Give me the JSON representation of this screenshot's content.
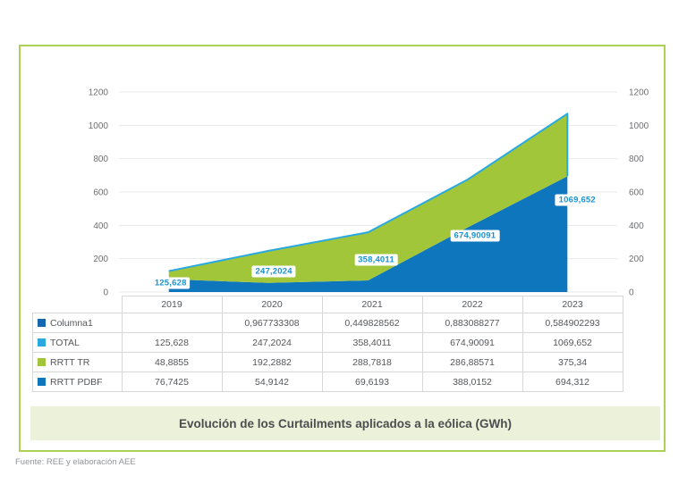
{
  "title": "Evolución de los Curtailments aplicados a la eólica (GWh)",
  "source": "Fuente: REE y elaboración AEE",
  "colors": {
    "frame_border": "#abd155",
    "title_band_bg": "#ecf2da",
    "grid_line": "#e7e8e9",
    "axis_text": "#6d6e71",
    "label_text": "#1a93d0",
    "area_pdbf": "#0e76bc",
    "area_tr": "#a2c63a",
    "line_total": "#2aa9e0"
  },
  "chart_data": {
    "type": "area",
    "stacked": true,
    "categories": [
      "2019",
      "2020",
      "2021",
      "2022",
      "2023"
    ],
    "series": [
      {
        "name": "RRTT PDBF",
        "color": "#0e76bc",
        "values": [
          76.7425,
          54.9142,
          69.6193,
          388.0152,
          694.312
        ]
      },
      {
        "name": "RRTT TR",
        "color": "#a2c63a",
        "values": [
          48.8855,
          192.2882,
          288.7818,
          286.88571,
          375.34
        ]
      },
      {
        "name": "TOTAL",
        "type": "line",
        "color": "#2aa9e0",
        "values": [
          125.628,
          247.2024,
          358.4011,
          674.90091,
          1069.652
        ]
      }
    ],
    "point_labels": [
      "125,628",
      "247,2024",
      "358,4011",
      "674,90091",
      "1069,652"
    ],
    "ylim": [
      0,
      1200
    ],
    "y_ticks": [
      1200,
      1000,
      800,
      600,
      400,
      200,
      0
    ],
    "dual_axis": true,
    "grid": true,
    "title": "Evolución de los Curtailments aplicados a la eólica (GWh)",
    "ylabel": "GWh"
  },
  "table": {
    "header": [
      "2019",
      "2020",
      "2021",
      "2022",
      "2023"
    ],
    "rows": [
      {
        "label": "Columna1",
        "key_color": "#1667b1",
        "cells": [
          "",
          "0,967733308",
          "0,449828562",
          "0,883088277",
          "0,584902293"
        ]
      },
      {
        "label": "TOTAL",
        "key_color": "#2aa9e0",
        "cells": [
          "125,628",
          "247,2024",
          "358,4011",
          "674,90091",
          "1069,652"
        ]
      },
      {
        "label": "RRTT TR",
        "key_color": "#a2c63a",
        "cells": [
          "48,8855",
          "192,2882",
          "288,7818",
          "286,88571",
          "375,34"
        ]
      },
      {
        "label": "RRTT PDBF",
        "key_color": "#0e76bc",
        "cells": [
          "76,7425",
          "54,9142",
          "69,6193",
          "388,0152",
          "694,312"
        ]
      }
    ]
  }
}
